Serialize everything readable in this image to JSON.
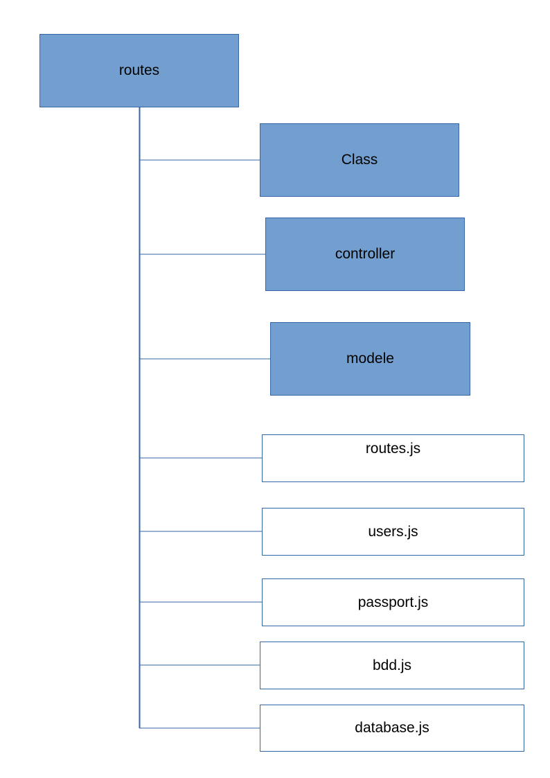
{
  "diagram": {
    "root": {
      "label": "routes",
      "kind": "folder"
    },
    "children": [
      {
        "label": "Class",
        "kind": "folder"
      },
      {
        "label": "controller",
        "kind": "folder"
      },
      {
        "label": "modele",
        "kind": "folder"
      },
      {
        "label": "routes.js",
        "kind": "file"
      },
      {
        "label": "users.js",
        "kind": "file"
      },
      {
        "label": "passport.js",
        "kind": "file"
      },
      {
        "label": "bdd.js",
        "kind": "file"
      },
      {
        "label": "database.js",
        "kind": "file"
      }
    ],
    "colors": {
      "folder_fill": "#729fcf",
      "border": "#3465a4",
      "file_fill": "#ffffff",
      "connector": "#3465a4"
    }
  }
}
